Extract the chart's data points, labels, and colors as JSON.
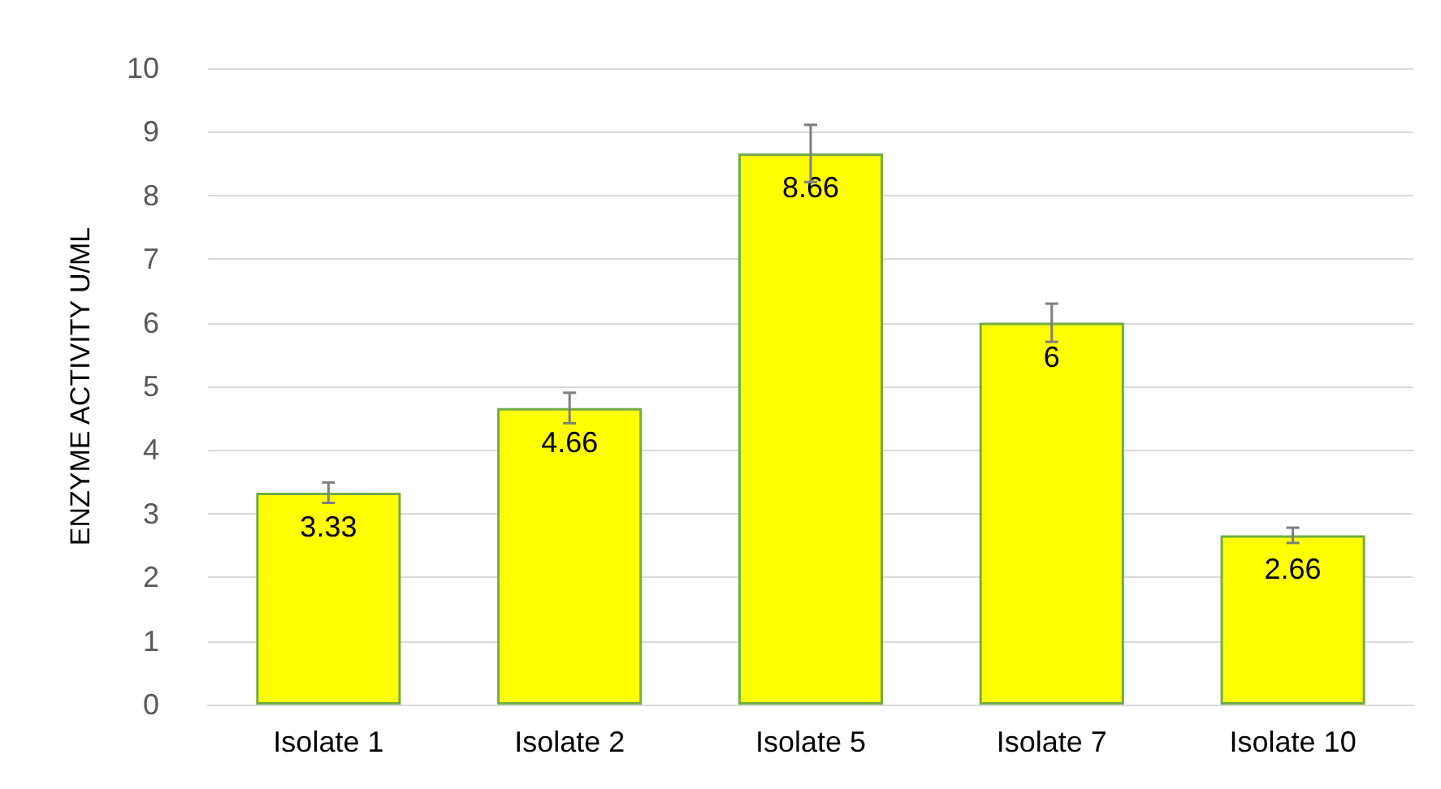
{
  "chart_data": {
    "type": "bar",
    "ylabel": "ENZYME ACTIVITY U/ML",
    "categories": [
      "Isolate 1",
      "Isolate 2",
      "Isolate 5",
      "Isolate 7",
      "Isolate 10"
    ],
    "values": [
      3.33,
      4.66,
      8.66,
      6,
      2.66
    ],
    "errors": [
      0.16,
      0.24,
      0.45,
      0.3,
      0.12
    ],
    "color": "#ffff00",
    "ylim": [
      0,
      10
    ],
    "yticks": [
      0,
      1,
      2,
      3,
      4,
      5,
      6,
      7,
      8,
      9,
      10
    ],
    "grid": "y",
    "data_labels": true
  }
}
